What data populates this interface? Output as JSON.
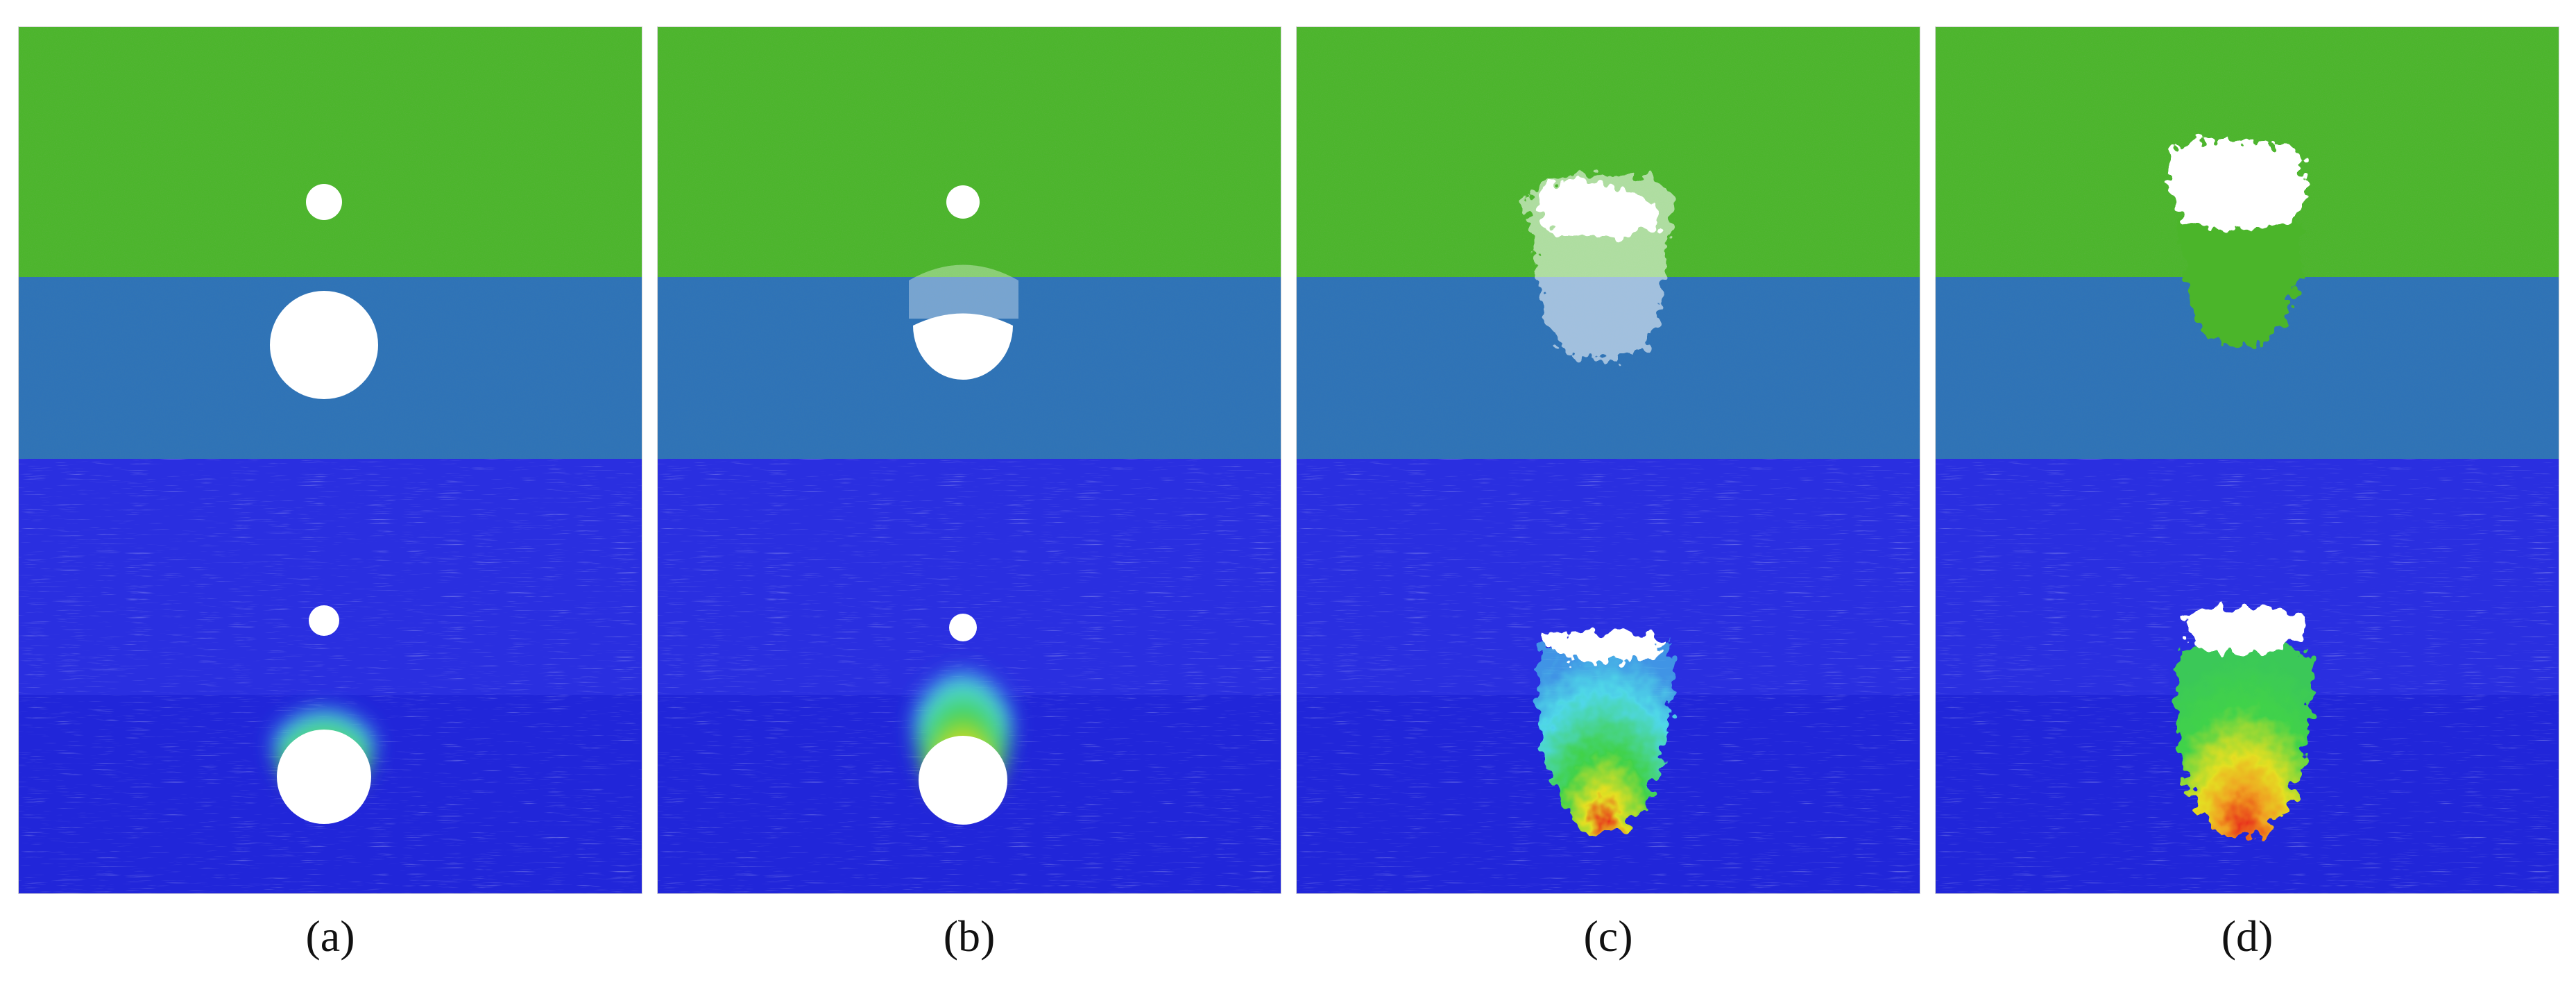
{
  "panels": [
    {
      "id": "a",
      "label": "(a)"
    },
    {
      "id": "b",
      "label": "(b)"
    },
    {
      "id": "c",
      "label": "(c)"
    },
    {
      "id": "d",
      "label": "(d)"
    }
  ],
  "colors": {
    "top_layer_green": "#4cb52c",
    "middle_layer_blue": "#2f73b7",
    "bottom_field_blue": "#2a2fe0",
    "deep_field_blue": "#2126d9",
    "void_white": "#ffffff",
    "hot_red": "#e8321c",
    "warm_yellow": "#e4df22",
    "mid_green": "#41d24a",
    "cool_cyan": "#4fd7e8"
  }
}
